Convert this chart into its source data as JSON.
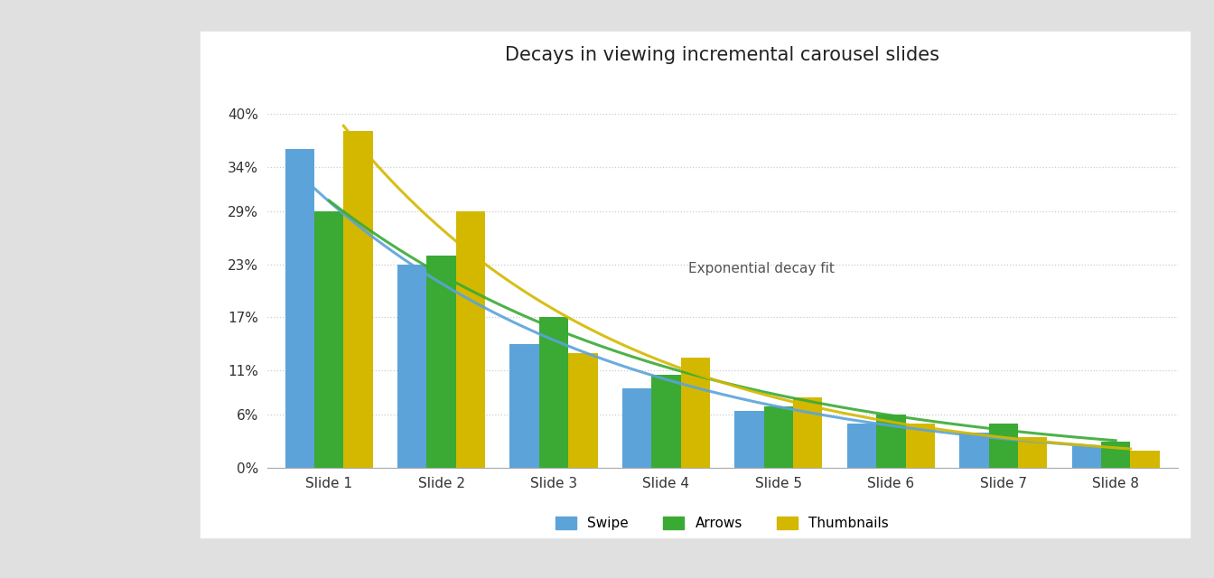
{
  "title": "Decays in viewing incremental carousel slides",
  "categories": [
    "Slide 1",
    "Slide 2",
    "Slide 3",
    "Slide 4",
    "Slide 5",
    "Slide 6",
    "Slide 7",
    "Slide 8"
  ],
  "swipe": [
    0.36,
    0.23,
    0.14,
    0.09,
    0.065,
    0.05,
    0.04,
    0.025
  ],
  "arrows": [
    0.29,
    0.24,
    0.17,
    0.105,
    0.07,
    0.06,
    0.05,
    0.03
  ],
  "thumbnails": [
    0.38,
    0.29,
    0.13,
    0.125,
    0.08,
    0.05,
    0.035,
    0.02
  ],
  "swipe_color": "#5ba3d9",
  "arrows_color": "#3aaa35",
  "thumbnails_color": "#d4b800",
  "decay_label": "Exponential decay fit",
  "yticks": [
    0.0,
    0.06,
    0.11,
    0.17,
    0.23,
    0.29,
    0.34,
    0.4
  ],
  "ytick_labels": [
    "0%",
    "6%",
    "11%",
    "17%",
    "23%",
    "29%",
    "34%",
    "40%"
  ],
  "background_color": "#ffffff",
  "outer_background": "#e0e0e0",
  "grid_color": "#cccccc",
  "title_fontsize": 15,
  "label_fontsize": 11,
  "legend_fontsize": 11,
  "bar_width": 0.26
}
